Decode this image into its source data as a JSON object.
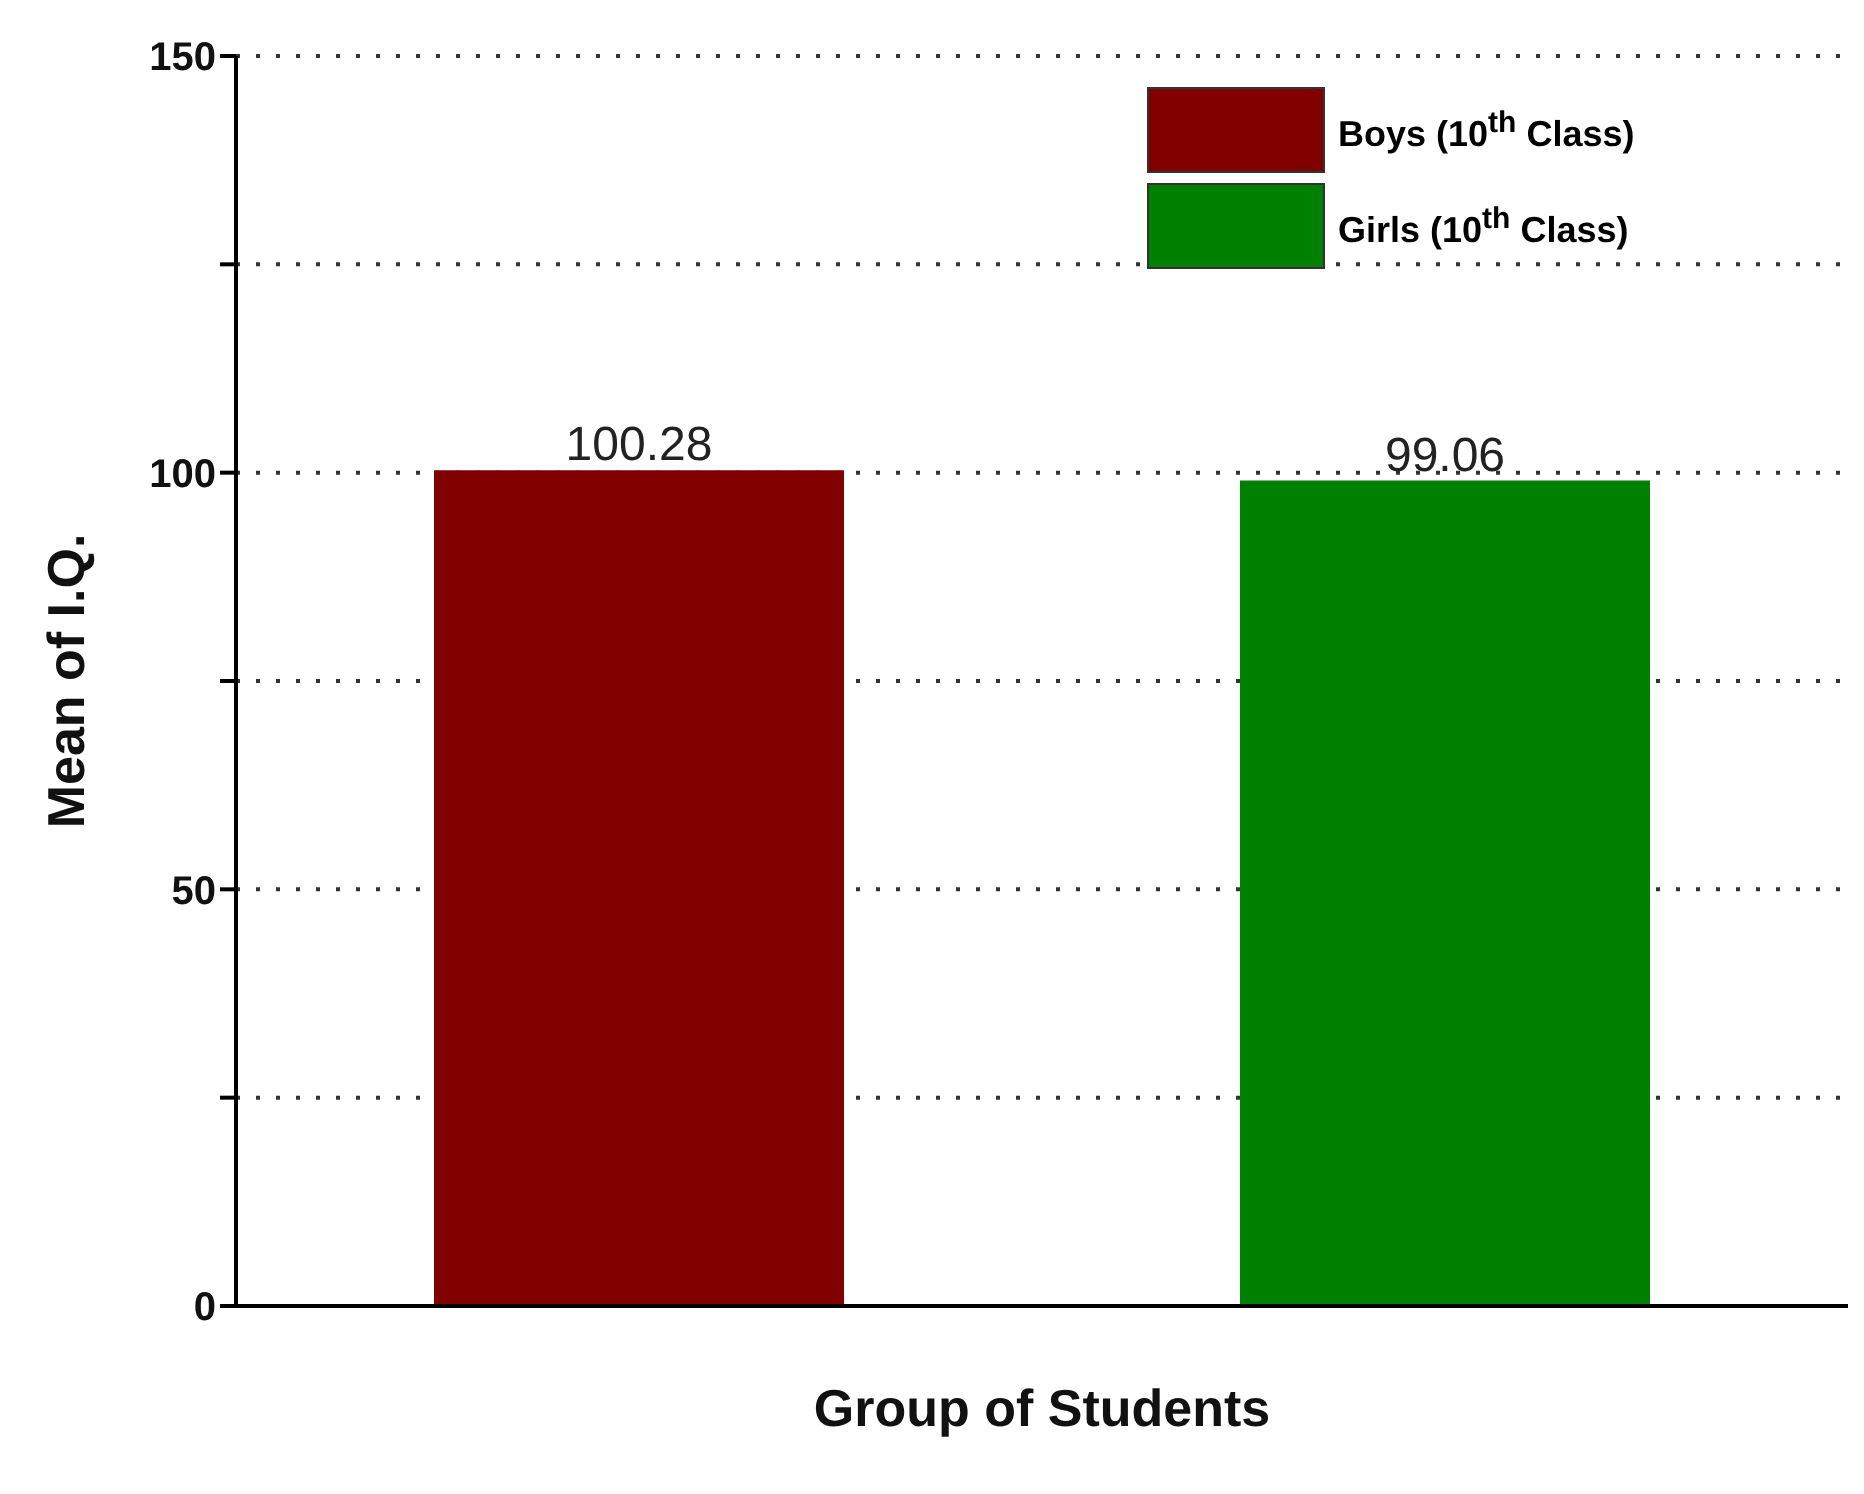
{
  "chart_data": {
    "type": "bar",
    "xlabel": "Group of Students",
    "ylabel": "Mean of I.Q.",
    "categories": [
      null,
      null
    ],
    "series": [
      {
        "name": "Boys (10$^{th}$ Class)",
        "color": "#800000",
        "values": [
          100.28,
          null
        ]
      },
      {
        "name": "Girls (10$^{th}$ Class)",
        "color": "#008000",
        "values": [
          null,
          99.06
        ]
      }
    ],
    "ylim": [
      0,
      150
    ],
    "yticks": [
      0,
      {
        "value": 25,
        "label": null
      },
      50,
      {
        "value": 75,
        "label": null
      },
      100,
      {
        "value": 125,
        "label": null
      },
      150
    ],
    "grid": "y",
    "legend": "top right",
    "data_labels": true
  }
}
